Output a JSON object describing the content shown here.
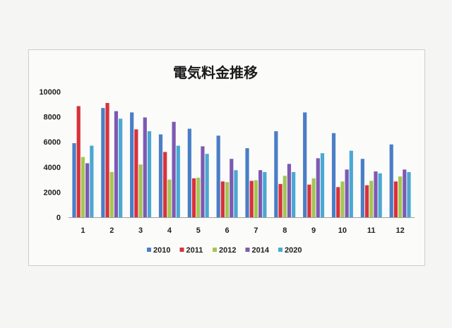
{
  "chart_data": {
    "type": "bar",
    "title": "電気料金推移",
    "categories": [
      "1",
      "2",
      "3",
      "4",
      "5",
      "6",
      "7",
      "8",
      "9",
      "10",
      "11",
      "12"
    ],
    "ylim": [
      0,
      10000
    ],
    "yticks": [
      0,
      2000,
      4000,
      6000,
      8000,
      10000
    ],
    "grid": false,
    "legend_position": "bottom",
    "series": [
      {
        "name": "2010",
        "color": "#4a7ec6",
        "values": [
          5900,
          8700,
          8350,
          6600,
          7050,
          6500,
          5500,
          6850,
          8350,
          6700,
          4650,
          5800
        ]
      },
      {
        "name": "2011",
        "color": "#d8313a",
        "values": [
          8850,
          9100,
          7000,
          5200,
          3100,
          2850,
          2900,
          2650,
          2600,
          2400,
          2550,
          2850
        ]
      },
      {
        "name": "2012",
        "color": "#a4c653",
        "values": [
          4800,
          3600,
          4200,
          3000,
          3150,
          2800,
          2950,
          3300,
          3100,
          2850,
          2900,
          3250
        ]
      },
      {
        "name": "2014",
        "color": "#7d59b2",
        "values": [
          4300,
          8450,
          7950,
          7600,
          5650,
          4650,
          3750,
          4250,
          4700,
          3800,
          3650,
          3800
        ]
      },
      {
        "name": "2020",
        "color": "#4aa8d2",
        "values": [
          5700,
          7850,
          6850,
          5700,
          5050,
          3750,
          3600,
          3600,
          5100,
          5300,
          3500,
          3600
        ]
      }
    ]
  }
}
